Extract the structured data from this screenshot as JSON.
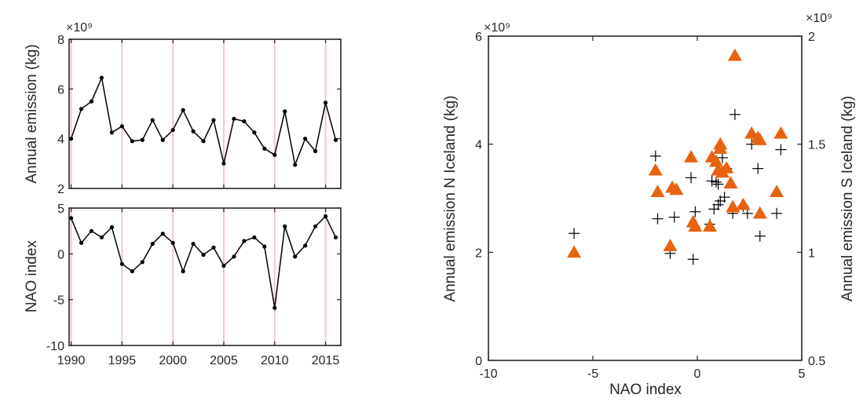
{
  "chart_data": [
    {
      "type": "line",
      "ylabel": "Annual emission (kg)",
      "multiplier": "×10⁹",
      "xlim": [
        1989.8,
        2016.5
      ],
      "ylim": [
        2,
        8
      ],
      "yticks": [
        2,
        4,
        6,
        8
      ],
      "highlight_years": [
        1990,
        1995,
        2000,
        2005,
        2010,
        2015
      ],
      "colors": {
        "line": "#000000",
        "highlight": "#f2c8cc"
      },
      "x": [
        1990,
        1991,
        1992,
        1993,
        1994,
        1995,
        1996,
        1997,
        1998,
        1999,
        2000,
        2001,
        2002,
        2003,
        2004,
        2005,
        2006,
        2007,
        2008,
        2009,
        2010,
        2011,
        2012,
        2013,
        2014,
        2015,
        2016
      ],
      "values": [
        4.0,
        5.2,
        5.5,
        6.45,
        4.25,
        4.5,
        3.9,
        3.95,
        4.75,
        3.95,
        4.35,
        5.15,
        4.3,
        3.9,
        4.75,
        3.0,
        4.8,
        4.7,
        4.25,
        3.6,
        3.35,
        5.1,
        2.95,
        4.0,
        3.5,
        5.45,
        3.95
      ]
    },
    {
      "type": "line",
      "xlabel": "",
      "ylabel": "NAO index",
      "xlim": [
        1989.8,
        2016.5
      ],
      "ylim": [
        -10,
        5
      ],
      "yticks": [
        -10,
        -5,
        0,
        5
      ],
      "xticks": [
        1990,
        1995,
        2000,
        2005,
        2010,
        2015
      ],
      "highlight_years": [
        1990,
        1995,
        2000,
        2005,
        2010,
        2015
      ],
      "colors": {
        "line": "#000000",
        "highlight": "#f2c8cc"
      },
      "x": [
        1990,
        1991,
        1992,
        1993,
        1994,
        1995,
        1996,
        1997,
        1998,
        1999,
        2000,
        2001,
        2002,
        2003,
        2004,
        2005,
        2006,
        2007,
        2008,
        2009,
        2010,
        2011,
        2012,
        2013,
        2014,
        2015,
        2016
      ],
      "values": [
        3.9,
        1.2,
        2.5,
        1.8,
        2.9,
        -1.1,
        -1.9,
        -0.9,
        1.1,
        2.2,
        1.2,
        -1.9,
        1.1,
        -0.1,
        0.7,
        -1.3,
        -0.3,
        1.4,
        1.8,
        0.8,
        -5.9,
        3.0,
        -0.3,
        0.9,
        3.0,
        4.1,
        1.8
      ]
    },
    {
      "type": "scatter",
      "xlabel": "NAO index",
      "ylabel_left": "Annual emission N Iceland (kg)",
      "ylabel_right": "Annual emission S Iceland (kg)",
      "multiplier_left": "×10⁹",
      "multiplier_right": "×10⁹",
      "xlim": [
        -10,
        5
      ],
      "ylim_left": [
        0,
        6
      ],
      "ylim_right": [
        0.5,
        2
      ],
      "xticks": [
        -10,
        -5,
        0,
        5
      ],
      "yticks_left": [
        0,
        2,
        4,
        6
      ],
      "yticks_right": [
        0.5,
        1,
        1.5,
        2
      ],
      "ytick_labels_right": [
        "0.5",
        "1",
        "1.5",
        "2"
      ],
      "colors": {
        "north": "#000000",
        "south": "#e8620f",
        "right_axis": "#e8620f"
      },
      "north_points": [
        [
          -5.9,
          2.35
        ],
        [
          -2.0,
          3.78
        ],
        [
          -1.3,
          1.98
        ],
        [
          -1.1,
          2.65
        ],
        [
          -1.9,
          2.62
        ],
        [
          -0.3,
          3.38
        ],
        [
          -0.2,
          1.87
        ],
        [
          -0.1,
          2.75
        ],
        [
          0.7,
          3.32
        ],
        [
          0.8,
          2.8
        ],
        [
          0.9,
          3.3
        ],
        [
          1.0,
          3.26
        ],
        [
          1.1,
          2.95
        ],
        [
          1.0,
          2.88
        ],
        [
          1.2,
          3.75
        ],
        [
          1.4,
          3.55
        ],
        [
          1.7,
          2.72
        ],
        [
          1.8,
          4.55
        ],
        [
          2.2,
          2.85
        ],
        [
          2.4,
          2.72
        ],
        [
          2.6,
          4.0
        ],
        [
          2.9,
          3.55
        ],
        [
          3.0,
          2.3
        ],
        [
          3.8,
          2.72
        ],
        [
          4.0,
          3.9
        ],
        [
          1.3,
          3.02
        ],
        [
          0.6,
          2.52
        ]
      ],
      "south_points": [
        [
          -5.9,
          1.0
        ],
        [
          -2.0,
          1.38
        ],
        [
          -1.9,
          1.28
        ],
        [
          -1.3,
          1.03
        ],
        [
          -1.2,
          1.3
        ],
        [
          -1.0,
          1.29
        ],
        [
          -0.3,
          1.44
        ],
        [
          -0.2,
          1.14
        ],
        [
          -0.1,
          1.12
        ],
        [
          0.6,
          1.12
        ],
        [
          0.7,
          1.44
        ],
        [
          0.9,
          1.42
        ],
        [
          1.0,
          1.38
        ],
        [
          1.1,
          1.5
        ],
        [
          1.1,
          1.48
        ],
        [
          1.2,
          1.37
        ],
        [
          1.4,
          1.39
        ],
        [
          1.6,
          1.32
        ],
        [
          1.7,
          1.21
        ],
        [
          1.8,
          1.91
        ],
        [
          2.2,
          1.22
        ],
        [
          2.6,
          1.55
        ],
        [
          2.9,
          1.53
        ],
        [
          3.0,
          1.18
        ],
        [
          3.0,
          1.52
        ],
        [
          3.8,
          1.28
        ],
        [
          4.0,
          1.55
        ]
      ]
    }
  ]
}
